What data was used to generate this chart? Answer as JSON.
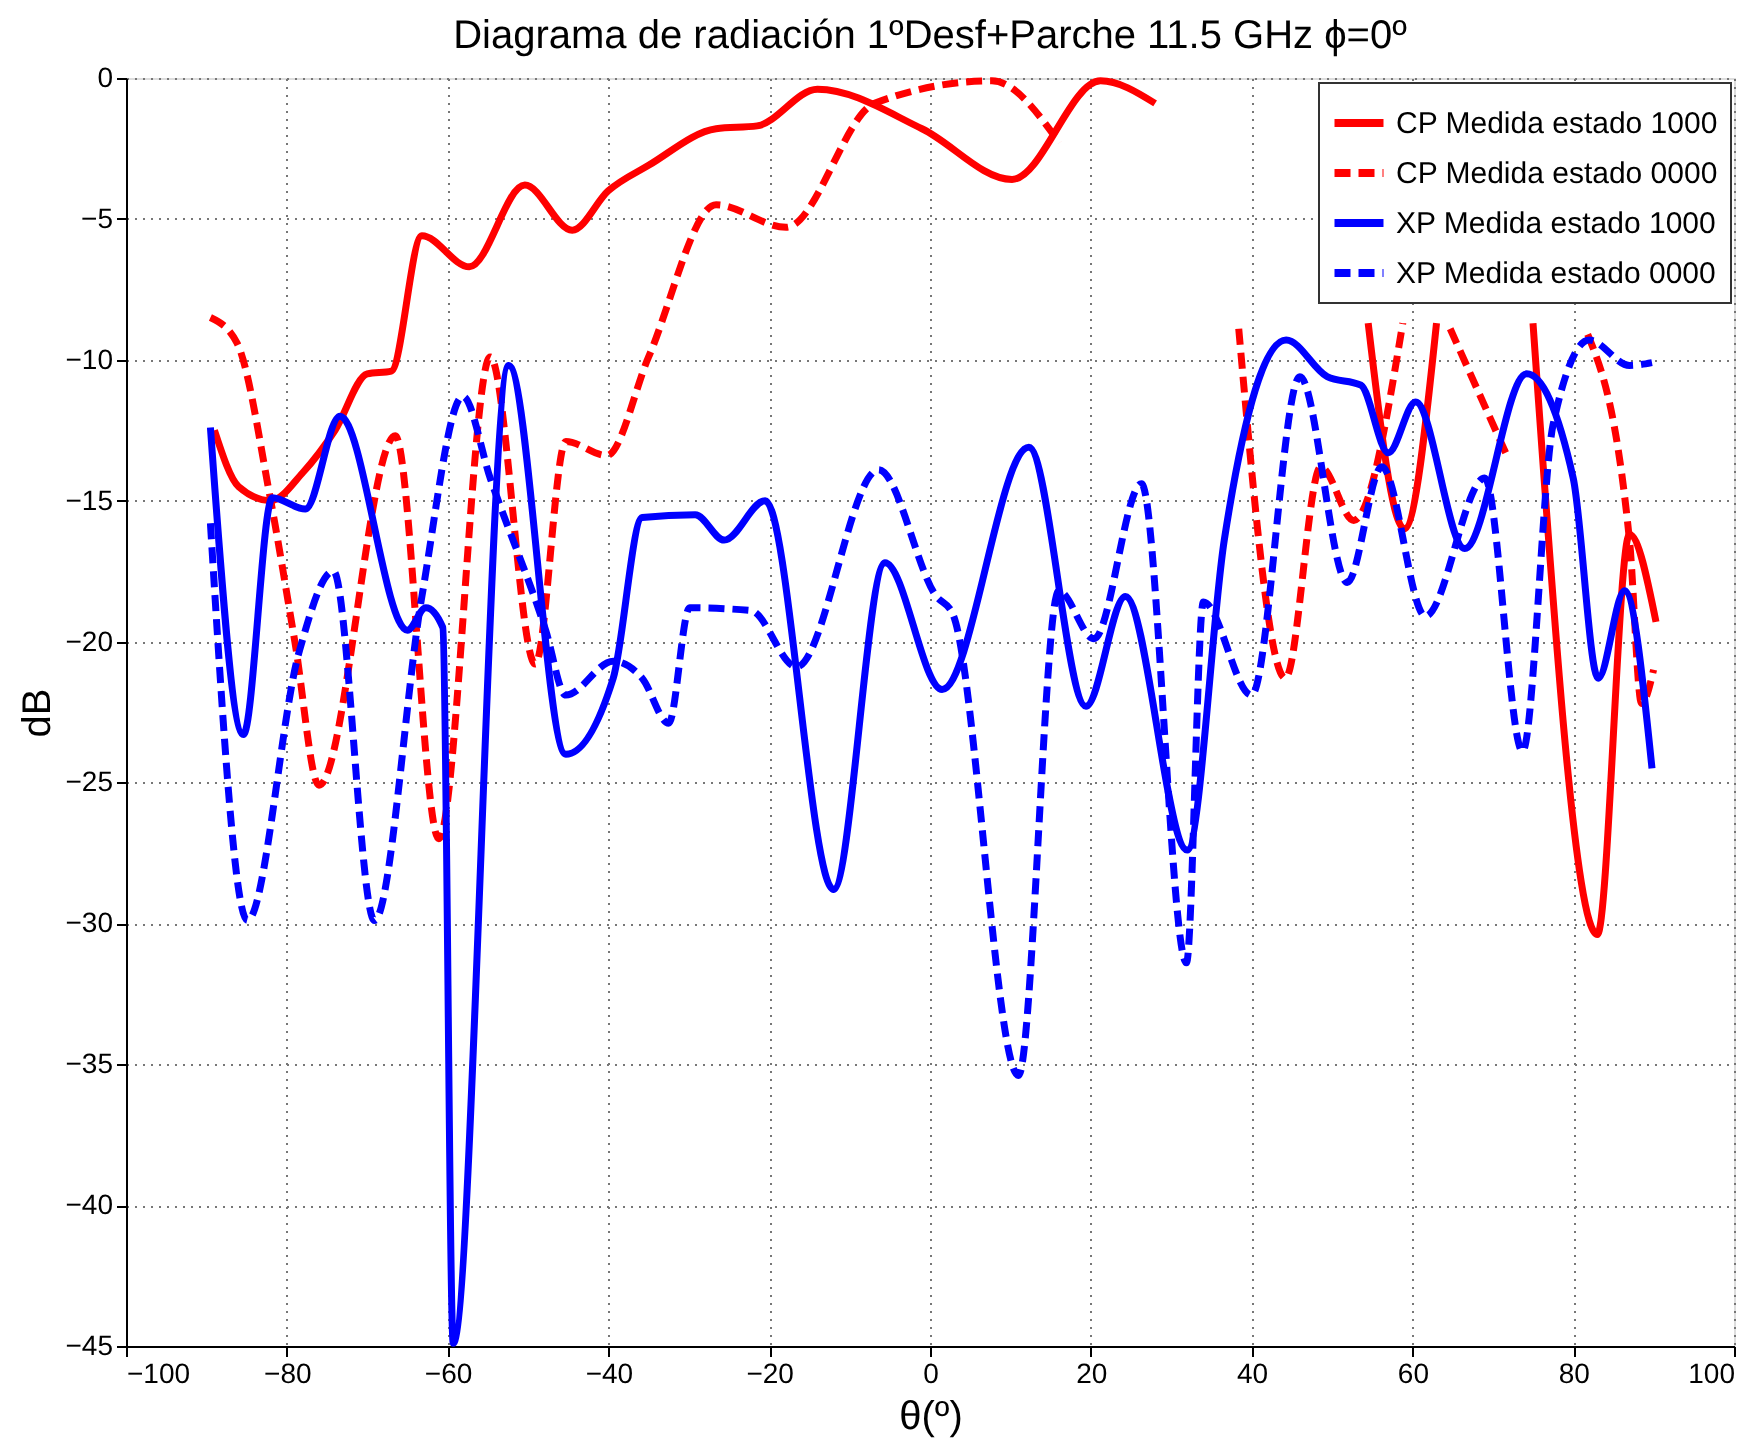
{
  "chart_data": {
    "type": "line",
    "title": "Diagrama de radiación 1ºDesf+Parche 11.5 GHz ϕ=0º",
    "xlabel": "θ(º)",
    "ylabel": "dB",
    "xlim": [
      -100,
      100
    ],
    "xticks": [
      -100,
      -80,
      -60,
      -40,
      -20,
      0,
      20,
      40,
      60,
      80,
      100
    ],
    "ylim": [
      -45,
      0
    ],
    "yticks": [
      -45,
      -40,
      -35,
      -30,
      -25,
      -20,
      -15,
      -10,
      -5,
      0
    ],
    "grid": true,
    "legend": "top right",
    "marker": "none",
    "series": [
      {
        "name": "CP Medida estado 1000",
        "color": "#ff0000",
        "line_style": "solid",
        "x": [
          -89,
          -86,
          -82,
          -78,
          -74,
          -70,
          -67,
          -63.2,
          -57.3,
          -50.4,
          -44.5,
          -40,
          -35,
          -26.6,
          -21.5,
          -14,
          -1,
          10.2,
          21.2,
          28,
          40,
          54.5,
          59,
          63,
          70,
          75,
          83,
          87,
          90.3
        ],
        "values": [
          -12.5,
          -14.5,
          -15,
          -14,
          -12.5,
          -10.5,
          -10.4,
          -5.6,
          -6.7,
          -3.8,
          -5.4,
          -4,
          -3.1,
          -1.8,
          -1.7,
          -0.4,
          -1.8,
          -3.6,
          -0.1,
          -0.9,
          null,
          -8.7,
          -16,
          -8.7,
          null,
          -8.7,
          -30.4,
          -16.2,
          -19.3
        ]
      },
      {
        "name": "CP Medida estado 0000",
        "color": "#ff0000",
        "line_style": "dashed",
        "x": [
          -89.5,
          -86.2,
          -82,
          -79,
          -76,
          -66.5,
          -61.1,
          -54.7,
          -49.1,
          -45.3,
          -40.2,
          -35,
          -26.6,
          -17.9,
          -6.9,
          7.7,
          16.1,
          25,
          38.4,
          44.2,
          48.6,
          52.7,
          58.8,
          62,
          64.7,
          71.6,
          76,
          81.8,
          87,
          88.5,
          90
        ],
        "values": [
          -8.5,
          -9.4,
          -15,
          -20,
          -25.1,
          -12.7,
          -27,
          -9.9,
          -20.8,
          -12.9,
          -13.4,
          -9.9,
          -4.5,
          -5.3,
          -0.9,
          -0.1,
          -2.3,
          null,
          -8.9,
          -21.3,
          -13.8,
          -15.7,
          -8.7,
          null,
          -8.9,
          -13.3,
          null,
          -9.1,
          -16.4,
          -22.2,
          -21
        ]
      },
      {
        "name": "XP Medida estado 1000",
        "color": "#0000ff",
        "line_style": "solid",
        "x": [
          -89.5,
          -85.4,
          -81.8,
          -77.7,
          -73.4,
          -65,
          -62.7,
          -60.6,
          -59.3,
          -52.4,
          -45.3,
          -39.4,
          -35.8,
          -29.2,
          -25.6,
          -20.5,
          -12,
          -5.6,
          1.5,
          12.3,
          19.4,
          24.3,
          32,
          36.6,
          44.3,
          49.4,
          53.6,
          57,
          60.4,
          66.5,
          74.2,
          80,
          83.1,
          86.4,
          89.8
        ],
        "values": [
          -12.4,
          -23.3,
          -14.9,
          -15.3,
          -12,
          -19.6,
          -18.8,
          -19.5,
          -44.9,
          -10.2,
          -24,
          -21.3,
          -15.6,
          -15.5,
          -16.4,
          -15,
          -28.8,
          -17.2,
          -21.7,
          -13.1,
          -22.3,
          -18.4,
          -27.4,
          -16.4,
          -9.3,
          -10.6,
          -10.9,
          -13.3,
          -11.5,
          -16.7,
          -10.5,
          -14.2,
          -21.3,
          -18.2,
          -24.5
        ]
      },
      {
        "name": "XP Medida estado 0000",
        "color": "#0000ff",
        "line_style": "dashed",
        "x": [
          -89.5,
          -84.9,
          -78.5,
          -74.2,
          -69.1,
          -63.2,
          -58.1,
          -54.7,
          -47.8,
          -45.3,
          -39.4,
          -35.8,
          -32.5,
          -29.9,
          -22.3,
          -16.6,
          -6.4,
          0.8,
          2.8,
          11,
          16,
          20.4,
          26.3,
          31.9,
          34,
          40,
          46,
          51.9,
          56.2,
          61.6,
          69,
          73.7,
          77.5,
          82,
          87,
          89.8
        ],
        "values": [
          -15.8,
          -29.9,
          -20.4,
          -17.5,
          -29.9,
          -18.4,
          -11.3,
          -14.2,
          -19.6,
          -21.9,
          -20.7,
          -21.3,
          -22.9,
          -18.8,
          -18.9,
          -20.9,
          -13.9,
          -18.4,
          -19,
          -35.4,
          -18.2,
          -19.9,
          -14.4,
          -31.4,
          -18.6,
          -21.9,
          -10.6,
          -17.9,
          -13.8,
          -19.1,
          -14.2,
          -23.9,
          -12.3,
          -9.3,
          -10.2,
          -10.1
        ]
      }
    ]
  }
}
